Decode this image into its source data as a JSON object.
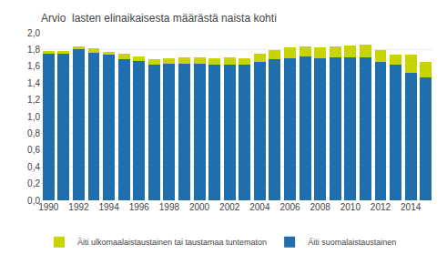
{
  "chart_data": {
    "type": "bar",
    "title": "Arvio  lasten elinaikaisesta määrästä naista kohti",
    "categories": [
      "1990",
      null,
      "1992",
      null,
      "1994",
      null,
      "1996",
      null,
      "1998",
      null,
      "2000",
      null,
      "2002",
      null,
      "2004",
      null,
      "2006",
      null,
      "2008",
      null,
      "2010",
      null,
      "2012",
      null,
      "2014",
      null
    ],
    "series": [
      {
        "name": "Äiti suomalaistaustainen",
        "color": "#1F6FAE",
        "values": [
          1.76,
          1.76,
          1.8,
          1.76,
          1.74,
          1.68,
          1.66,
          1.62,
          1.63,
          1.63,
          1.63,
          1.62,
          1.62,
          1.62,
          1.65,
          1.69,
          1.7,
          1.72,
          1.7,
          1.71,
          1.71,
          1.71,
          1.65,
          1.62,
          1.52,
          1.47
        ]
      },
      {
        "name": "Äiti ulkomaalaistaustainen tai taustamaa tuntematon",
        "color": "#C8D400",
        "values": [
          0.02,
          0.02,
          0.04,
          0.06,
          0.03,
          0.07,
          0.06,
          0.07,
          0.07,
          0.08,
          0.08,
          0.08,
          0.09,
          0.08,
          0.1,
          0.1,
          0.13,
          0.12,
          0.13,
          0.13,
          0.14,
          0.15,
          0.14,
          0.12,
          0.22,
          0.18
        ]
      }
    ],
    "stacked": true,
    "ylim": [
      0,
      2.0
    ],
    "yticks": [
      {
        "value": 0.0,
        "label": "0,0"
      },
      {
        "value": 0.2,
        "label": "0,2"
      },
      {
        "value": 0.4,
        "label": "0,4"
      },
      {
        "value": 0.6,
        "label": "0,6"
      },
      {
        "value": 0.8,
        "label": "0,8"
      },
      {
        "value": 1.0,
        "label": "1,0"
      },
      {
        "value": 1.2,
        "label": "1,2"
      },
      {
        "value": 1.4,
        "label": "1,4"
      },
      {
        "value": 1.6,
        "label": "1,6"
      },
      {
        "value": 1.8,
        "label": "1,8"
      },
      {
        "value": 2.0,
        "label": "2,0"
      }
    ],
    "grid": true,
    "legend": "lower left"
  }
}
